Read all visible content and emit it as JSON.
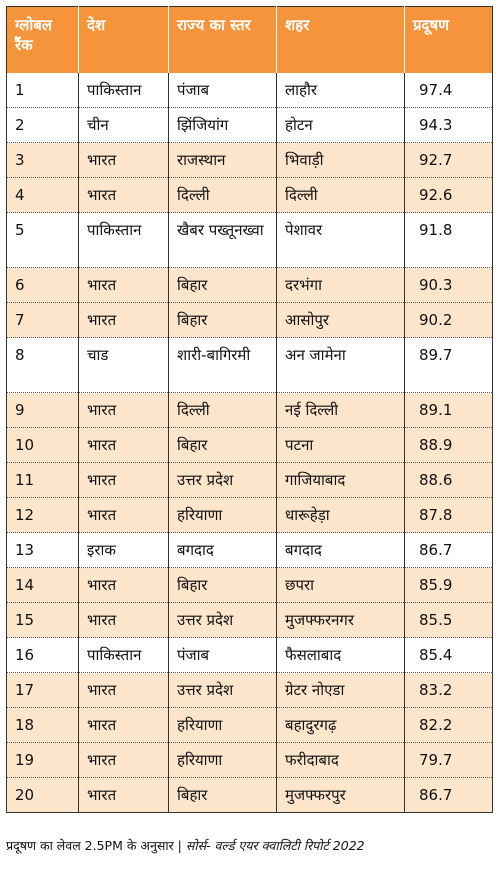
{
  "table": {
    "headers": {
      "rank": "ग्लोबल रैंक",
      "country": "देश",
      "state": "राज्य का स्तर",
      "city": "शहर",
      "pollution": "प्रदूषण"
    },
    "rows": [
      {
        "rank": "1",
        "country": "पाकिस्तान",
        "state": "पंजाब",
        "city": "लाहौर",
        "pollution": "97.4"
      },
      {
        "rank": "2",
        "country": "चीन",
        "state": "झिंजियांग",
        "city": "होटन",
        "pollution": "94.3"
      },
      {
        "rank": "3",
        "country": "भारत",
        "state": "राजस्थान",
        "city": "भिवाड़ी",
        "pollution": "92.7"
      },
      {
        "rank": "4",
        "country": "भारत",
        "state": "दिल्ली",
        "city": "दिल्ली",
        "pollution": "92.6"
      },
      {
        "rank": "5",
        "country": "पाकिस्तान",
        "state": "खैबर पख्तूनख्वा",
        "city": "पेशावर",
        "pollution": "91.8"
      },
      {
        "rank": "6",
        "country": "भारत",
        "state": "बिहार",
        "city": "दरभंगा",
        "pollution": "90.3"
      },
      {
        "rank": "7",
        "country": "भारत",
        "state": "बिहार",
        "city": "आसोपुर",
        "pollution": "90.2"
      },
      {
        "rank": "8",
        "country": "चाड",
        "state": "शारी-बागिरमी",
        "city": "अन जामेना",
        "pollution": "89.7"
      },
      {
        "rank": "9",
        "country": "भारत",
        "state": "दिल्ली",
        "city": "नई दिल्ली",
        "pollution": "89.1"
      },
      {
        "rank": "10",
        "country": "भारत",
        "state": "बिहार",
        "city": "पटना",
        "pollution": "88.9"
      },
      {
        "rank": "11",
        "country": "भारत",
        "state": "उत्तर प्रदेश",
        "city": "गाजियाबाद",
        "pollution": "88.6"
      },
      {
        "rank": "12",
        "country": "भारत",
        "state": "हरियाणा",
        "city": "धारूहेड़ा",
        "pollution": "87.8"
      },
      {
        "rank": "13",
        "country": "इराक",
        "state": "बगदाद",
        "city": "बगदाद",
        "pollution": "86.7"
      },
      {
        "rank": "14",
        "country": "भारत",
        "state": "बिहार",
        "city": "छपरा",
        "pollution": "85.9"
      },
      {
        "rank": "15",
        "country": "भारत",
        "state": "उत्तर प्रदेश",
        "city": "मुजफ्फरनगर",
        "pollution": "85.5"
      },
      {
        "rank": "16",
        "country": "पाकिस्तान",
        "state": "पंजाब",
        "city": "फैसलाबाद",
        "pollution": "85.4"
      },
      {
        "rank": "17",
        "country": "भारत",
        "state": "उत्तर प्रदेश",
        "city": "ग्रेटर नोएडा",
        "pollution": "83.2"
      },
      {
        "rank": "18",
        "country": "भारत",
        "state": "हरियाणा",
        "city": "बहादुरगढ़",
        "pollution": "82.2"
      },
      {
        "rank": "19",
        "country": "भारत",
        "state": "हरियाणा",
        "city": "फरीदाबाद",
        "pollution": "79.7"
      },
      {
        "rank": "20",
        "country": "भारत",
        "state": "बिहार",
        "city": "मुजफ्फरपुर",
        "pollution": "86.7"
      }
    ]
  },
  "footer": {
    "note": "प्रदूषण का लेवल 2.5PM के अनुसार | ",
    "source": "सोर्स- वर्ल्ड एयर क्वालिटी रिपोर्ट 2022"
  },
  "colors": {
    "header_bg": "#f5943a",
    "header_text": "#ffffff",
    "alt_row_bg": "#fde6cc"
  }
}
